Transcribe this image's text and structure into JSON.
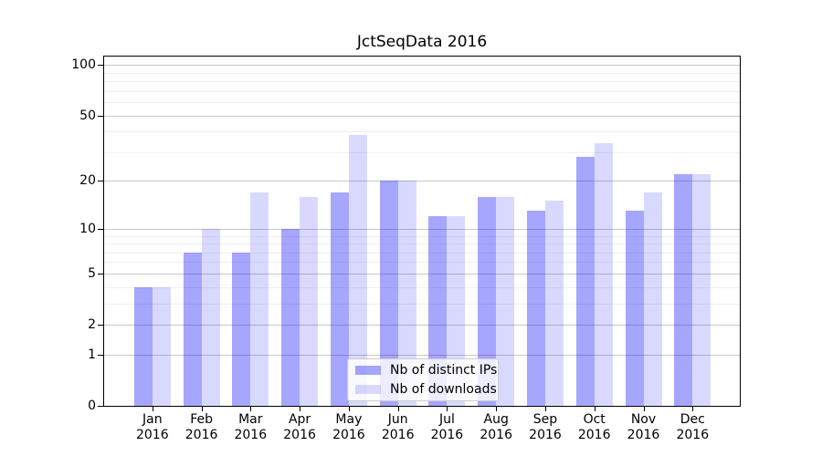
{
  "figure": {
    "title": "JctSeqData 2016"
  },
  "chart_data": {
    "type": "bar",
    "title": "JctSeqData 2016",
    "xlabel": "",
    "ylabel": "",
    "yscale": "log1p",
    "ylim": [
      0,
      113
    ],
    "grid": "horizontal major+minor",
    "legend_position": "lower center",
    "categories": [
      {
        "month": "Jan",
        "year": "2016"
      },
      {
        "month": "Feb",
        "year": "2016"
      },
      {
        "month": "Mar",
        "year": "2016"
      },
      {
        "month": "Apr",
        "year": "2016"
      },
      {
        "month": "May",
        "year": "2016"
      },
      {
        "month": "Jun",
        "year": "2016"
      },
      {
        "month": "Jul",
        "year": "2016"
      },
      {
        "month": "Aug",
        "year": "2016"
      },
      {
        "month": "Sep",
        "year": "2016"
      },
      {
        "month": "Oct",
        "year": "2016"
      },
      {
        "month": "Nov",
        "year": "2016"
      },
      {
        "month": "Dec",
        "year": "2016"
      }
    ],
    "series": [
      {
        "name": "Nb of distinct IPs",
        "color": "rgba(0,0,255,0.35)",
        "values": [
          4,
          7,
          7,
          10,
          17,
          20,
          12,
          16,
          13,
          28,
          13,
          22
        ]
      },
      {
        "name": "Nb of downloads",
        "color": "rgba(0,0,255,0.15)",
        "values": [
          4,
          10,
          17,
          16,
          38,
          20,
          12,
          16,
          15,
          34,
          17,
          22
        ]
      }
    ],
    "y_major_ticks": [
      100,
      50,
      20,
      10,
      5,
      2,
      1,
      0
    ],
    "y_minor_gridlines": [
      3,
      4,
      6,
      7,
      8,
      9,
      30,
      40,
      60,
      70,
      80,
      90
    ],
    "colors": {
      "grid_major": "#c8c8c8",
      "grid_minor": "#efefef",
      "spine": "#000000",
      "text": "#000000"
    }
  }
}
